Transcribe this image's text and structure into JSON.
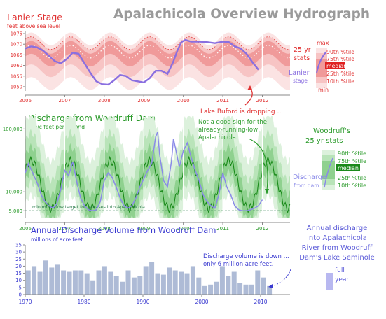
{
  "title": "Apalachicola Overview Hydrograph",
  "colors": {
    "stage_band_outer": "#fbe3e3",
    "stage_band_mid": "#f7c4c4",
    "stage_band_inner": "#f09a9a",
    "stage_line": "#8a6fe0",
    "stage_text": "#e03030",
    "discharge_band_outer": "#dcf1dc",
    "discharge_band_mid": "#b9e4b9",
    "discharge_band_inner": "#8fd18f",
    "discharge_line": "#8a8ae8",
    "discharge_text": "#2a9a2a",
    "volume_bar": "#aebbd6",
    "volume_text": "#3a3ad0",
    "median_green": "#1a8a1a",
    "median_red": "#e02020",
    "axis": "#888888",
    "dashed_target": "#2a7a4a"
  },
  "annotations": {
    "buford": "Lake Buford is dropping ...",
    "woodruff": [
      "Not a good sign for the",
      "already-running-low",
      "Apalachicola."
    ],
    "volume": [
      "Discharge volume is down ...",
      "only 6 million acre feet."
    ],
    "min_flow": "minimum flow target for releases into Apalachicola"
  },
  "stage_legend": {
    "max": "max",
    "stats": [
      "25 yr",
      "stats"
    ],
    "series": [
      "Lanier",
      "stage"
    ],
    "pct90": "90th %tile",
    "pct75": "75th %tile",
    "median": "median",
    "pct25": "25th %tile",
    "pct10": "10th %tile",
    "min": "min"
  },
  "discharge_legend": {
    "title": [
      "Woodruff's",
      "25 yr stats"
    ],
    "series": [
      "Discharge",
      "from dam"
    ],
    "pct90": "90th %tile",
    "pct75": "75th %tile",
    "median": "median",
    "pct25": "25th %tile",
    "pct10": "10th %tile"
  },
  "volume_legend": {
    "text": [
      "Annual discharge",
      "into Apalachicola",
      "River from Woodruff",
      "Dam's Lake Seminole"
    ],
    "bar": [
      "full",
      "year"
    ]
  },
  "chart_data": [
    {
      "type": "line",
      "title": "Lanier Stage",
      "subtitle": "feet above sea level",
      "x_ticks": [
        "2006",
        "2007",
        "2008",
        "2009",
        "2010",
        "2011",
        "2012"
      ],
      "y_ticks": [
        1050,
        1055,
        1060,
        1065,
        1070,
        1075
      ],
      "ylim": [
        1048,
        1076
      ],
      "xlim": [
        2006.0,
        2012.7
      ],
      "series": [
        {
          "x": [
            2006.0,
            2006.15,
            2006.3,
            2006.45,
            2006.6,
            2006.75,
            2006.9,
            2007.05,
            2007.2,
            2007.35,
            2007.5,
            2007.65,
            2007.8,
            2007.95,
            2008.1,
            2008.25,
            2008.4,
            2008.55,
            2008.7,
            2008.85,
            2009.0,
            2009.15,
            2009.3,
            2009.45,
            2009.6,
            2009.75,
            2009.85,
            2009.95,
            2010.05,
            2010.2,
            2010.4,
            2010.6,
            2010.8,
            2011.0,
            2011.15,
            2011.3,
            2011.45,
            2011.6,
            2011.75,
            2011.9
          ],
          "y": [
            1068,
            1069,
            1068.5,
            1067,
            1064.5,
            1062,
            1061,
            1063,
            1066,
            1065.5,
            1061,
            1056.5,
            1052.5,
            1051.2,
            1051,
            1053,
            1055.5,
            1055,
            1053,
            1052.5,
            1052,
            1054,
            1057.5,
            1057.5,
            1056,
            1062,
            1067,
            1071,
            1072,
            1071.2,
            1071.2,
            1071,
            1070.5,
            1071.2,
            1071,
            1069,
            1068,
            1065.5,
            1061.5,
            1058
          ]
        }
      ]
    },
    {
      "type": "line",
      "title": "Discharge from Woodruff Dam",
      "subtitle": "cubic feet per second",
      "log_scale": true,
      "x_ticks": [
        "2006",
        "2007",
        "2008",
        "2009",
        "2010",
        "2011",
        "2012"
      ],
      "y_ticks": [
        5000,
        10000,
        100000
      ],
      "ylim": [
        3800,
        160000
      ],
      "xlim": [
        2006.0,
        2012.7
      ],
      "min_flow_target": 5000,
      "series": [
        {
          "x": [
            2006.0,
            2006.08,
            2006.16,
            2006.24,
            2006.32,
            2006.4,
            2006.5,
            2006.6,
            2006.7,
            2006.8,
            2006.9,
            2007.0,
            2007.1,
            2007.2,
            2007.3,
            2007.4,
            2007.5,
            2007.6,
            2007.7,
            2007.8,
            2007.9,
            2008.0,
            2008.1,
            2008.2,
            2008.3,
            2008.4,
            2008.5,
            2008.6,
            2008.7,
            2008.8,
            2008.9,
            2009.0,
            2009.1,
            2009.2,
            2009.3,
            2009.35,
            2009.4,
            2009.5,
            2009.6,
            2009.7,
            2009.75,
            2009.8,
            2009.9,
            2010.0,
            2010.1,
            2010.2,
            2010.3,
            2010.4,
            2010.5,
            2010.6,
            2010.7,
            2010.8,
            2010.9,
            2011.0,
            2011.1,
            2011.2,
            2011.3,
            2011.4,
            2011.5,
            2011.6,
            2011.7,
            2011.8,
            2011.9,
            2012.0
          ],
          "y": [
            20000,
            28000,
            22000,
            17000,
            13000,
            9000,
            7000,
            6000,
            5500,
            6500,
            11000,
            22000,
            18000,
            30000,
            15000,
            8000,
            6000,
            5200,
            5000,
            5200,
            7000,
            15000,
            20000,
            17000,
            12000,
            8000,
            6000,
            5500,
            6000,
            8000,
            12000,
            16000,
            22000,
            28000,
            75000,
            90000,
            40000,
            15000,
            12000,
            30000,
            70000,
            50000,
            25000,
            45000,
            60000,
            35000,
            22000,
            15000,
            9000,
            7000,
            6000,
            5500,
            9000,
            20000,
            12000,
            9000,
            6000,
            5200,
            5000,
            5000,
            5200,
            5500,
            6000,
            7500
          ]
        }
      ]
    },
    {
      "type": "bar",
      "title": "Annual Discharge Volume from Woodruff Dam",
      "subtitle": "millions of acre feet",
      "x_ticks": [
        "1970",
        "1980",
        "1990",
        "2000",
        "2010"
      ],
      "y_ticks": [
        0,
        5,
        10,
        15,
        20,
        25,
        30,
        35
      ],
      "ylim": [
        0,
        35
      ],
      "categories": [
        1970,
        1971,
        1972,
        1973,
        1974,
        1975,
        1976,
        1977,
        1978,
        1979,
        1980,
        1981,
        1982,
        1983,
        1984,
        1985,
        1986,
        1987,
        1988,
        1989,
        1990,
        1991,
        1992,
        1993,
        1994,
        1995,
        1996,
        1997,
        1998,
        1999,
        2000,
        2001,
        2002,
        2003,
        2004,
        2005,
        2006,
        2007,
        2008,
        2009,
        2010,
        2011
      ],
      "values": [
        17,
        20,
        16,
        24,
        19,
        21,
        17,
        16,
        17,
        17,
        15,
        10,
        17,
        20,
        16,
        13,
        9,
        17,
        12,
        13,
        20,
        23,
        15,
        14,
        19,
        17,
        16,
        15,
        20,
        12,
        6,
        7,
        9,
        20,
        13,
        16,
        8,
        7,
        7,
        17,
        12,
        6
      ]
    }
  ]
}
